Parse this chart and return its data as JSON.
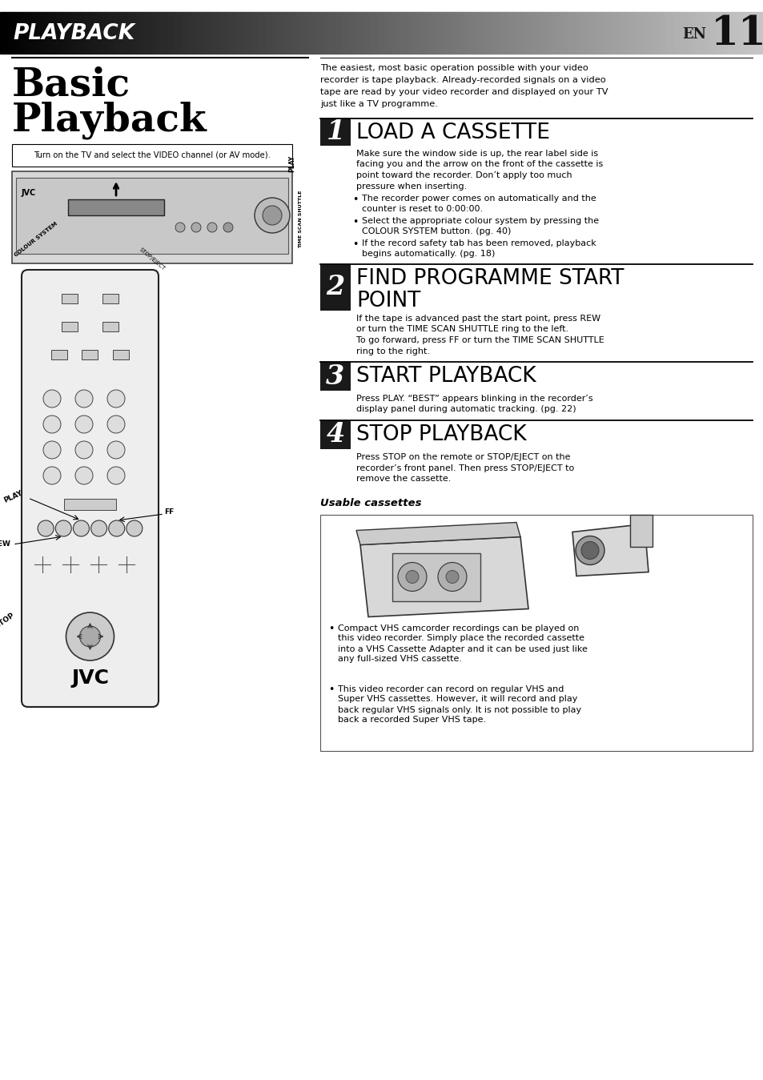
{
  "page_bg": "#ffffff",
  "header_text": "PLAYBACK",
  "header_en": "EN",
  "header_num": "11",
  "subtitle_tv": "Turn on the TV and select the VIDEO channel (or AV mode).",
  "intro_text": "The easiest, most basic operation possible with your video\nrecorder is tape playback. Already-recorded signals on a video\ntape are read by your video recorder and displayed on your TV\njust like a TV programme.",
  "step1_title": "LOAD A CASSETTE",
  "step1_num": "1",
  "step1_body": "Make sure the window side is up, the rear label side is\nfacing you and the arrow on the front of the cassette is\npoint toward the recorder. Don’t apply too much\npressure when inserting.",
  "step1_bullets": [
    "The recorder power comes on automatically and the\ncounter is reset to 0:00:00.",
    "Select the appropriate colour system by pressing the\nCOLOUR SYSTEM button. (pg. 40)",
    "If the record safety tab has been removed, playback\nbegins automatically. (pg. 18)"
  ],
  "step2_title": "FIND PROGRAMME START\nPOINT",
  "step2_num": "2",
  "step2_body": "If the tape is advanced past the start point, press REW\nor turn the TIME SCAN SHUTTLE ring to the left.\nTo go forward, press FF or turn the TIME SCAN SHUTTLE\nring to the right.",
  "step3_title": "START PLAYBACK",
  "step3_num": "3",
  "step3_body": "Press PLAY. “BEST” appears blinking in the recorder’s\ndisplay panel during automatic tracking. (pg. 22)",
  "step4_title": "STOP PLAYBACK",
  "step4_num": "4",
  "step4_body": "Press STOP on the remote or STOP/EJECT on the\nrecorder’s front panel. Then press STOP/EJECT to\nremove the cassette.",
  "usable_title": "Usable cassettes",
  "usable_bullet1": "Compact VHS camcorder recordings can be played on\nthis video recorder. Simply place the recorded cassette\ninto a VHS Cassette Adapter and it can be used just like\nany full-sized VHS cassette.",
  "usable_bullet2": "This video recorder can record on regular VHS and\nSuper VHS cassettes. However, it will record and play\nback regular VHS signals only. It is not possible to play\nback a recorded Super VHS tape.",
  "step_bar_color": "#1a1a1a",
  "text_color": "#000000"
}
